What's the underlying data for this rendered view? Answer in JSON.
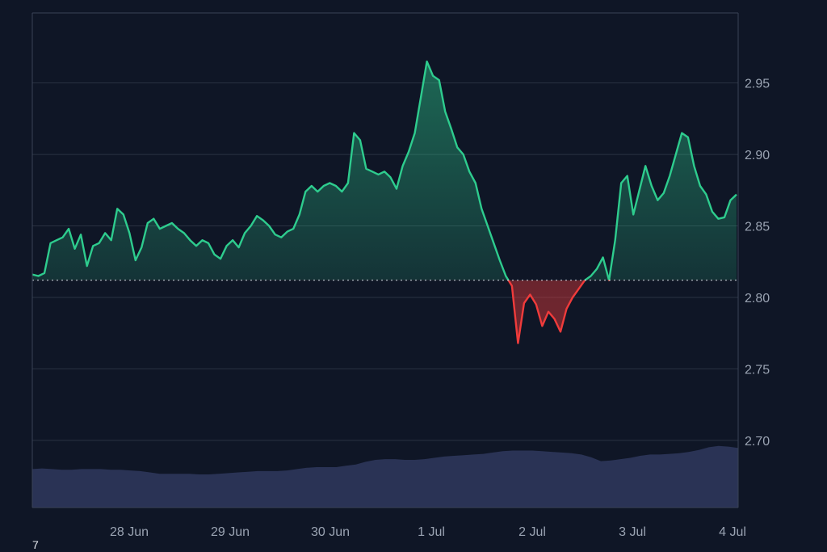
{
  "chart_data": {
    "type": "area",
    "title": "",
    "xlabel": "",
    "ylabel": "",
    "x_ticks": [
      "28 Jun",
      "29 Jun",
      "30 Jun",
      "1 Jul",
      "2 Jul",
      "3 Jul",
      "4 Jul"
    ],
    "y_ticks": [
      "2.95",
      "2.90",
      "2.85",
      "2.80",
      "2.75",
      "2.70"
    ],
    "ylim": [
      2.653,
      2.999
    ],
    "baseline": 2.812,
    "grid": true,
    "colors": {
      "above": "#2ecc8e",
      "below": "#ef3b3b",
      "volume": "#2a3355",
      "grid": "#2a3242",
      "baseline": "#d9dee6"
    },
    "price_series": [
      2.816,
      2.815,
      2.817,
      2.838,
      2.84,
      2.842,
      2.848,
      2.834,
      2.844,
      2.822,
      2.836,
      2.838,
      2.845,
      2.84,
      2.862,
      2.858,
      2.845,
      2.826,
      2.835,
      2.852,
      2.855,
      2.848,
      2.85,
      2.852,
      2.848,
      2.845,
      2.84,
      2.836,
      2.84,
      2.838,
      2.83,
      2.827,
      2.836,
      2.84,
      2.835,
      2.845,
      2.85,
      2.857,
      2.854,
      2.85,
      2.844,
      2.842,
      2.846,
      2.848,
      2.858,
      2.874,
      2.878,
      2.874,
      2.878,
      2.88,
      2.878,
      2.874,
      2.88,
      2.915,
      2.91,
      2.89,
      2.888,
      2.886,
      2.888,
      2.884,
      2.876,
      2.892,
      2.902,
      2.915,
      2.94,
      2.965,
      2.955,
      2.952,
      2.93,
      2.918,
      2.905,
      2.9,
      2.888,
      2.88,
      2.862,
      2.85,
      2.838,
      2.826,
      2.815,
      2.808,
      2.768,
      2.796,
      2.802,
      2.795,
      2.78,
      2.79,
      2.785,
      2.776,
      2.792,
      2.8,
      2.806,
      2.812,
      2.815,
      2.82,
      2.828,
      2.812,
      2.84,
      2.88,
      2.885,
      2.858,
      2.875,
      2.892,
      2.878,
      2.868,
      2.873,
      2.885,
      2.9,
      2.915,
      2.912,
      2.892,
      2.878,
      2.872,
      2.86,
      2.855,
      2.856,
      2.868,
      2.872
    ],
    "volume_series": [
      0.58,
      0.59,
      0.58,
      0.57,
      0.57,
      0.58,
      0.58,
      0.58,
      0.57,
      0.57,
      0.56,
      0.55,
      0.53,
      0.51,
      0.51,
      0.51,
      0.51,
      0.5,
      0.5,
      0.51,
      0.52,
      0.53,
      0.54,
      0.55,
      0.55,
      0.55,
      0.56,
      0.58,
      0.6,
      0.61,
      0.61,
      0.61,
      0.63,
      0.65,
      0.69,
      0.72,
      0.73,
      0.73,
      0.72,
      0.72,
      0.73,
      0.75,
      0.77,
      0.78,
      0.79,
      0.8,
      0.81,
      0.83,
      0.85,
      0.86,
      0.86,
      0.86,
      0.85,
      0.84,
      0.83,
      0.82,
      0.8,
      0.76,
      0.7,
      0.71,
      0.73,
      0.75,
      0.78,
      0.8,
      0.8,
      0.81,
      0.82,
      0.84,
      0.87,
      0.91,
      0.93,
      0.92,
      0.9
    ]
  },
  "footer": {
    "note": "7"
  }
}
